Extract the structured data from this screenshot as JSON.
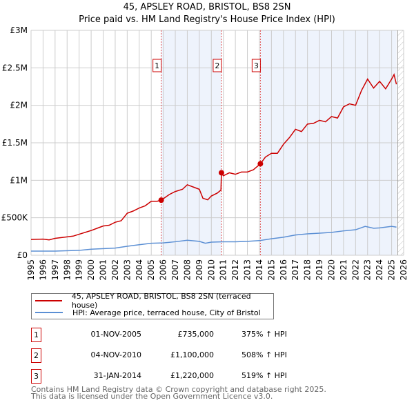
{
  "chart_data": {
    "type": "line",
    "title": "45, APSLEY ROAD, BRISTOL, BS8 2SN",
    "subtitle": "Price paid vs. HM Land Registry's House Price Index (HPI)",
    "xlim": [
      1995,
      2026
    ],
    "ylim": [
      0,
      3000000
    ],
    "y_ticks": [
      {
        "v": 0,
        "label": "£0"
      },
      {
        "v": 500000,
        "label": "£500K"
      },
      {
        "v": 1000000,
        "label": "£1M"
      },
      {
        "v": 1500000,
        "label": "£1.5M"
      },
      {
        "v": 2000000,
        "label": "£2M"
      },
      {
        "v": 2500000,
        "label": "£2.5M"
      },
      {
        "v": 3000000,
        "label": "£3M"
      }
    ],
    "x_ticks": [
      "1995",
      "1996",
      "1997",
      "1998",
      "1999",
      "2000",
      "2001",
      "2002",
      "2003",
      "2004",
      "2005",
      "2006",
      "2007",
      "2008",
      "2009",
      "2010",
      "2011",
      "2012",
      "2013",
      "2014",
      "2015",
      "2016",
      "2017",
      "2018",
      "2019",
      "2020",
      "2021",
      "2022",
      "2023",
      "2024",
      "2025",
      "2026"
    ],
    "grid": true,
    "shaded_ranges": [
      [
        2005.83,
        2010.84
      ],
      [
        2014.08,
        2025.4
      ]
    ],
    "hatch_from": 2025.5,
    "series": [
      {
        "name": "45, APSLEY ROAD, BRISTOL, BS8 2SN (terraced house)",
        "color": "#cc0000",
        "x": [
          1995,
          1996,
          1996.5,
          1997,
          1998,
          1998.5,
          1999,
          2000,
          2000.5,
          2001,
          2001.5,
          2002,
          2002.5,
          2003,
          2003.5,
          2004,
          2004.5,
          2005,
          2005.5,
          2005.83,
          2006.5,
          2007,
          2007.6,
          2008,
          2008.5,
          2009,
          2009.3,
          2009.7,
          2010,
          2010.5,
          2010.8,
          2010.84,
          2011,
          2011.5,
          2012,
          2012.5,
          2013,
          2013.5,
          2014.08,
          2014.5,
          2015,
          2015.5,
          2016,
          2016.5,
          2017,
          2017.5,
          2018,
          2018.5,
          2019,
          2019.5,
          2020,
          2020.5,
          2021,
          2021.5,
          2022,
          2022.5,
          2023,
          2023.5,
          2024,
          2024.5,
          2025,
          2025.2,
          2025.4
        ],
        "y": [
          210000,
          215000,
          205000,
          225000,
          245000,
          255000,
          280000,
          330000,
          360000,
          390000,
          400000,
          440000,
          460000,
          560000,
          590000,
          630000,
          660000,
          720000,
          720000,
          735000,
          810000,
          850000,
          880000,
          940000,
          910000,
          880000,
          760000,
          740000,
          790000,
          830000,
          870000,
          1100000,
          1060000,
          1100000,
          1080000,
          1110000,
          1110000,
          1140000,
          1220000,
          1310000,
          1360000,
          1360000,
          1480000,
          1570000,
          1680000,
          1650000,
          1750000,
          1760000,
          1800000,
          1780000,
          1850000,
          1830000,
          1980000,
          2020000,
          2000000,
          2200000,
          2350000,
          2230000,
          2320000,
          2220000,
          2350000,
          2410000,
          2280000
        ]
      },
      {
        "name": "HPI: Average price, terraced house, City of Bristol",
        "color": "#5b8fd4",
        "x": [
          1995,
          1997,
          1999,
          2000,
          2002,
          2003,
          2004,
          2005,
          2006,
          2007,
          2008,
          2009,
          2009.5,
          2010,
          2011,
          2012,
          2013,
          2014,
          2015,
          2016,
          2017,
          2018,
          2019,
          2020,
          2021,
          2022,
          2022.8,
          2023.5,
          2024,
          2025,
          2025.4
        ],
        "y": [
          55000,
          55000,
          65000,
          80000,
          95000,
          120000,
          140000,
          160000,
          165000,
          180000,
          200000,
          185000,
          160000,
          175000,
          180000,
          180000,
          185000,
          195000,
          220000,
          240000,
          270000,
          285000,
          295000,
          305000,
          325000,
          340000,
          385000,
          360000,
          365000,
          385000,
          375000
        ]
      }
    ],
    "markers": [
      {
        "id": "1",
        "x": 2005.83,
        "y": 735000
      },
      {
        "id": "2",
        "x": 2010.84,
        "y": 1100000
      },
      {
        "id": "3",
        "x": 2014.08,
        "y": 1220000
      }
    ]
  },
  "legend": {
    "items": [
      "45, APSLEY ROAD, BRISTOL, BS8 2SN (terraced house)",
      "HPI: Average price, terraced house, City of Bristol"
    ]
  },
  "transactions": [
    {
      "num": "1",
      "date": "01-NOV-2005",
      "price": "£735,000",
      "hpi": "375% ↑ HPI"
    },
    {
      "num": "2",
      "date": "04-NOV-2010",
      "price": "£1,100,000",
      "hpi": "508% ↑ HPI"
    },
    {
      "num": "3",
      "date": "31-JAN-2014",
      "price": "£1,220,000",
      "hpi": "519% ↑ HPI"
    }
  ],
  "footer": {
    "line1": "Contains HM Land Registry data © Crown copyright and database right 2025.",
    "line2": "This data is licensed under the Open Government Licence v3.0."
  }
}
